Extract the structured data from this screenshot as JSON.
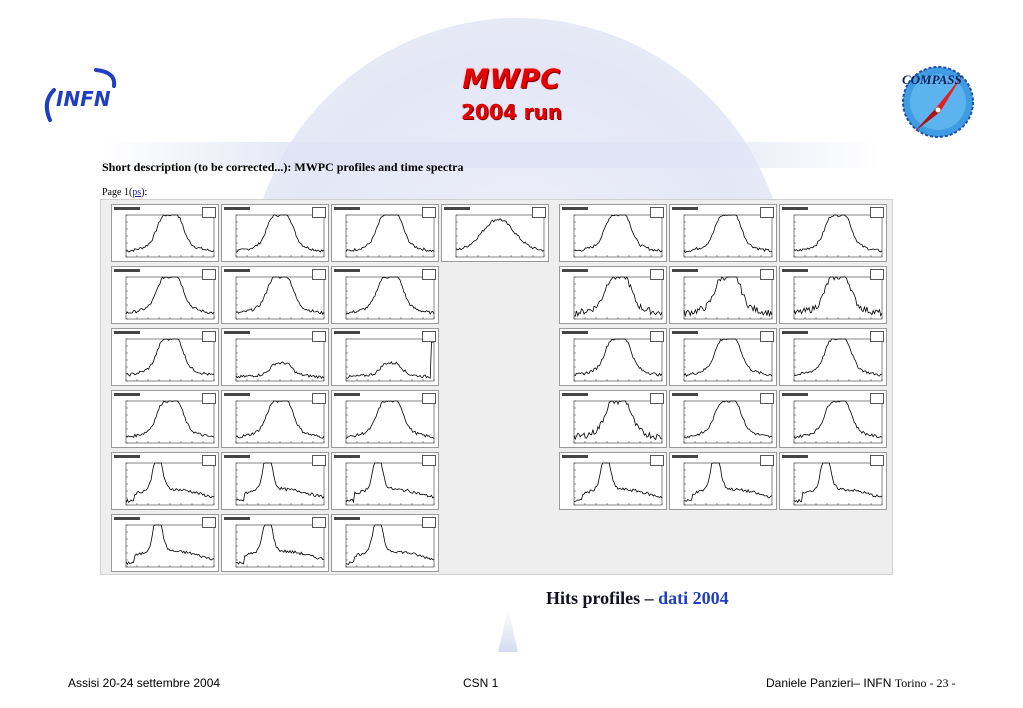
{
  "header": {
    "title": "MWPC",
    "subtitle": "2004 run",
    "left_logo": "INFN",
    "right_logo": "COMPASS"
  },
  "content": {
    "description": "Short description (to be corrected...):  MWPC profiles and time spectra",
    "page_label": "Page 1(",
    "page_link": "ps",
    "page_suffix": "):"
  },
  "caption": {
    "text": "Hits profiles – ",
    "highlight": "dati 2004",
    "highlight_color": "#1f3fbf"
  },
  "footer": {
    "left": "Assisi 20-24 settembre 2004",
    "center": "CSN 1",
    "right_name": "Daniele Panzieri– INFN ",
    "right_city": "Torino",
    "right_page": "  - 23 -"
  },
  "colors": {
    "title": "#e60000",
    "logo_blue": "#1f3fbf"
  },
  "histograms": [
    {
      "shape": "double-peak"
    },
    {
      "shape": "double-peak"
    },
    {
      "shape": "double-peak"
    },
    {
      "shape": "broad-peak"
    },
    {
      "shape": "double-peak"
    },
    {
      "shape": "double-peak"
    },
    {
      "shape": "double-peak-spike"
    },
    {
      "shape": "double-peak"
    },
    {
      "shape": "double-peak"
    },
    {
      "shape": "double-peak"
    },
    {
      "shape": "noisy-double"
    },
    {
      "shape": "noisy-double"
    },
    {
      "shape": "noisy-double"
    },
    {
      "shape": "double-peak"
    },
    {
      "shape": "low-double"
    },
    {
      "shape": "low-double-edge"
    },
    {
      "shape": "double-peak"
    },
    {
      "shape": "double-peak"
    },
    {
      "shape": "double-peak"
    },
    {
      "shape": "double-peak"
    },
    {
      "shape": "double-peak"
    },
    {
      "shape": "double-peak-spike"
    },
    {
      "shape": "noisy-double"
    },
    {
      "shape": "double-peak"
    },
    {
      "shape": "double-peak"
    },
    {
      "shape": "single-peak"
    },
    {
      "shape": "single-peak"
    },
    {
      "shape": "single-peak"
    },
    {
      "shape": "single-peak"
    },
    {
      "shape": "single-peak"
    },
    {
      "shape": "single-peak"
    },
    {
      "shape": "single-peak"
    },
    {
      "shape": "single-peak"
    },
    {
      "shape": "single-peak"
    }
  ]
}
